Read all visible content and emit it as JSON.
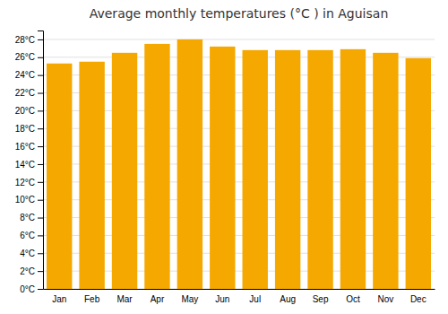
{
  "chart_data": {
    "type": "bar",
    "title": "Average monthly temperatures (°C ) in Aguisan",
    "categories": [
      "Jan",
      "Feb",
      "Mar",
      "Apr",
      "May",
      "Jun",
      "Jul",
      "Aug",
      "Sep",
      "Oct",
      "Nov",
      "Dec"
    ],
    "values": [
      25.3,
      25.5,
      26.5,
      27.5,
      28.0,
      27.2,
      26.8,
      26.8,
      26.8,
      26.9,
      26.5,
      25.9
    ],
    "color": "#F5A800",
    "ylim": [
      0,
      29
    ],
    "yticks": [
      {
        "value": 0,
        "label": "0°C"
      },
      {
        "value": 2,
        "label": "2°C"
      },
      {
        "value": 4,
        "label": "4°C"
      },
      {
        "value": 6,
        "label": "6°C"
      },
      {
        "value": 8,
        "label": "8°C"
      },
      {
        "value": 10,
        "label": "10°C"
      },
      {
        "value": 12,
        "label": "12°C"
      },
      {
        "value": 14,
        "label": "14°C"
      },
      {
        "value": 16,
        "label": "16°C"
      },
      {
        "value": 18,
        "label": "18°C"
      },
      {
        "value": 20,
        "label": "20°C"
      },
      {
        "value": 22,
        "label": "22°C"
      },
      {
        "value": 24,
        "label": "24°C"
      },
      {
        "value": 26,
        "label": "26°C"
      },
      {
        "value": 28,
        "label": "28°C"
      }
    ],
    "grid": true
  }
}
